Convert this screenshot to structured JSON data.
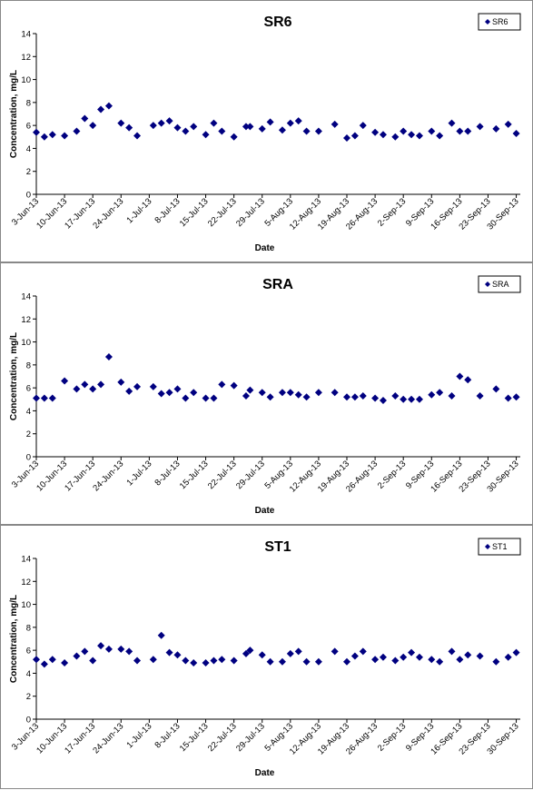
{
  "chart_data": [
    {
      "type": "scatter",
      "title": "SR6",
      "x_label": "Date",
      "y_label": "Concentration, mg/L",
      "legend": "upper right",
      "grid": false,
      "x": [
        "3-Jun-13",
        "5-Jun-13",
        "7-Jun-13",
        "10-Jun-13",
        "13-Jun-13",
        "15-Jun-13",
        "17-Jun-13",
        "19-Jun-13",
        "21-Jun-13",
        "24-Jun-13",
        "26-Jun-13",
        "28-Jun-13",
        "2-Jul-13",
        "4-Jul-13",
        "6-Jul-13",
        "8-Jul-13",
        "10-Jul-13",
        "12-Jul-13",
        "15-Jul-13",
        "17-Jul-13",
        "19-Jul-13",
        "22-Jul-13",
        "25-Jul-13",
        "26-Jul-13",
        "29-Jul-13",
        "31-Jul-13",
        "3-Aug-13",
        "5-Aug-13",
        "7-Aug-13",
        "9-Aug-13",
        "12-Aug-13",
        "16-Aug-13",
        "19-Aug-13",
        "21-Aug-13",
        "23-Aug-13",
        "26-Aug-13",
        "28-Aug-13",
        "31-Aug-13",
        "2-Sep-13",
        "4-Sep-13",
        "6-Sep-13",
        "9-Sep-13",
        "11-Sep-13",
        "14-Sep-13",
        "16-Sep-13",
        "18-Sep-13",
        "21-Sep-13",
        "25-Sep-13",
        "28-Sep-13",
        "30-Sep-13"
      ],
      "xlim": [
        "3-Jun-13",
        "1-Oct-13"
      ],
      "xticks": [
        "3-Jun-13",
        "10-Jun-13",
        "17-Jun-13",
        "24-Jun-13",
        "1-Jul-13",
        "8-Jul-13",
        "15-Jul-13",
        "22-Jul-13",
        "29-Jul-13",
        "5-Aug-13",
        "12-Aug-13",
        "19-Aug-13",
        "26-Aug-13",
        "2-Sep-13",
        "9-Sep-13",
        "16-Sep-13",
        "23-Sep-13",
        "30-Sep-13"
      ],
      "ylim": [
        0,
        14
      ],
      "yticks": [
        0,
        2,
        4,
        6,
        8,
        10,
        12,
        14
      ],
      "series": [
        {
          "name": "SR6",
          "color": "#000080",
          "values": [
            5.4,
            5.0,
            5.2,
            5.1,
            5.5,
            6.6,
            6.0,
            7.4,
            7.7,
            6.2,
            5.8,
            5.1,
            6.0,
            6.2,
            6.4,
            5.8,
            5.5,
            5.9,
            5.2,
            6.2,
            5.5,
            5.0,
            5.9,
            5.9,
            5.7,
            6.3,
            5.6,
            6.2,
            6.4,
            5.5,
            5.5,
            6.1,
            4.9,
            5.1,
            6.0,
            5.4,
            5.2,
            5.0,
            5.5,
            5.2,
            5.1,
            5.5,
            5.1,
            6.2,
            5.5,
            5.5,
            5.9,
            5.7,
            6.1,
            5.3
          ]
        }
      ]
    },
    {
      "type": "scatter",
      "title": "SRA",
      "x_label": "Date",
      "y_label": "Concentration, mg/L",
      "legend": "upper right",
      "grid": false,
      "x": [
        "3-Jun-13",
        "5-Jun-13",
        "7-Jun-13",
        "10-Jun-13",
        "13-Jun-13",
        "15-Jun-13",
        "17-Jun-13",
        "19-Jun-13",
        "21-Jun-13",
        "24-Jun-13",
        "26-Jun-13",
        "28-Jun-13",
        "2-Jul-13",
        "4-Jul-13",
        "6-Jul-13",
        "8-Jul-13",
        "10-Jul-13",
        "12-Jul-13",
        "15-Jul-13",
        "17-Jul-13",
        "19-Jul-13",
        "22-Jul-13",
        "25-Jul-13",
        "26-Jul-13",
        "29-Jul-13",
        "31-Jul-13",
        "3-Aug-13",
        "5-Aug-13",
        "7-Aug-13",
        "9-Aug-13",
        "12-Aug-13",
        "16-Aug-13",
        "19-Aug-13",
        "21-Aug-13",
        "23-Aug-13",
        "26-Aug-13",
        "28-Aug-13",
        "31-Aug-13",
        "2-Sep-13",
        "4-Sep-13",
        "6-Sep-13",
        "9-Sep-13",
        "11-Sep-13",
        "14-Sep-13",
        "16-Sep-13",
        "18-Sep-13",
        "21-Sep-13",
        "25-Sep-13",
        "28-Sep-13",
        "30-Sep-13"
      ],
      "xlim": [
        "3-Jun-13",
        "1-Oct-13"
      ],
      "xticks": [
        "3-Jun-13",
        "10-Jun-13",
        "17-Jun-13",
        "24-Jun-13",
        "1-Jul-13",
        "8-Jul-13",
        "15-Jul-13",
        "22-Jul-13",
        "29-Jul-13",
        "5-Aug-13",
        "12-Aug-13",
        "19-Aug-13",
        "26-Aug-13",
        "2-Sep-13",
        "9-Sep-13",
        "16-Sep-13",
        "23-Sep-13",
        "30-Sep-13"
      ],
      "ylim": [
        0,
        14
      ],
      "yticks": [
        0,
        2,
        4,
        6,
        8,
        10,
        12,
        14
      ],
      "series": [
        {
          "name": "SRA",
          "color": "#000080",
          "values": [
            5.1,
            5.1,
            5.1,
            6.6,
            5.9,
            6.3,
            5.9,
            6.3,
            8.7,
            6.5,
            5.7,
            6.1,
            6.1,
            5.5,
            5.6,
            5.9,
            5.1,
            5.6,
            5.1,
            5.1,
            6.3,
            6.2,
            5.3,
            5.8,
            5.6,
            5.2,
            5.6,
            5.6,
            5.4,
            5.2,
            5.6,
            5.6,
            5.2,
            5.2,
            5.3,
            5.1,
            4.9,
            5.3,
            5.0,
            5.0,
            5.0,
            5.4,
            5.6,
            5.3,
            7.0,
            6.7,
            5.3,
            5.9,
            5.1,
            5.2
          ]
        }
      ]
    },
    {
      "type": "scatter",
      "title": "ST1",
      "x_label": "Date",
      "y_label": "Concentration, mg/L",
      "legend": "upper right",
      "grid": false,
      "x": [
        "3-Jun-13",
        "5-Jun-13",
        "7-Jun-13",
        "10-Jun-13",
        "13-Jun-13",
        "15-Jun-13",
        "17-Jun-13",
        "19-Jun-13",
        "21-Jun-13",
        "24-Jun-13",
        "26-Jun-13",
        "28-Jun-13",
        "2-Jul-13",
        "4-Jul-13",
        "6-Jul-13",
        "8-Jul-13",
        "10-Jul-13",
        "12-Jul-13",
        "15-Jul-13",
        "17-Jul-13",
        "19-Jul-13",
        "22-Jul-13",
        "25-Jul-13",
        "26-Jul-13",
        "29-Jul-13",
        "31-Jul-13",
        "3-Aug-13",
        "5-Aug-13",
        "7-Aug-13",
        "9-Aug-13",
        "12-Aug-13",
        "16-Aug-13",
        "19-Aug-13",
        "21-Aug-13",
        "23-Aug-13",
        "26-Aug-13",
        "28-Aug-13",
        "31-Aug-13",
        "2-Sep-13",
        "4-Sep-13",
        "6-Sep-13",
        "9-Sep-13",
        "11-Sep-13",
        "14-Sep-13",
        "16-Sep-13",
        "18-Sep-13",
        "21-Sep-13",
        "25-Sep-13",
        "28-Sep-13",
        "30-Sep-13"
      ],
      "xlim": [
        "3-Jun-13",
        "1-Oct-13"
      ],
      "xticks": [
        "3-Jun-13",
        "10-Jun-13",
        "17-Jun-13",
        "24-Jun-13",
        "1-Jul-13",
        "8-Jul-13",
        "15-Jul-13",
        "22-Jul-13",
        "29-Jul-13",
        "5-Aug-13",
        "12-Aug-13",
        "19-Aug-13",
        "26-Aug-13",
        "2-Sep-13",
        "9-Sep-13",
        "16-Sep-13",
        "23-Sep-13",
        "30-Sep-13"
      ],
      "ylim": [
        0,
        14
      ],
      "yticks": [
        0,
        2,
        4,
        6,
        8,
        10,
        12,
        14
      ],
      "series": [
        {
          "name": "ST1",
          "color": "#000080",
          "values": [
            5.2,
            4.8,
            5.2,
            4.9,
            5.5,
            5.9,
            5.1,
            6.4,
            6.1,
            6.1,
            5.9,
            5.1,
            5.2,
            7.3,
            5.8,
            5.6,
            5.1,
            4.9,
            4.9,
            5.1,
            5.2,
            5.1,
            5.7,
            6.0,
            5.6,
            5.0,
            5.0,
            5.7,
            5.9,
            5.0,
            5.0,
            5.9,
            5.0,
            5.5,
            5.9,
            5.2,
            5.4,
            5.1,
            5.4,
            5.8,
            5.4,
            5.2,
            5.0,
            5.9,
            5.2,
            5.6,
            5.5,
            5.0,
            5.4,
            5.8
          ]
        }
      ]
    }
  ]
}
